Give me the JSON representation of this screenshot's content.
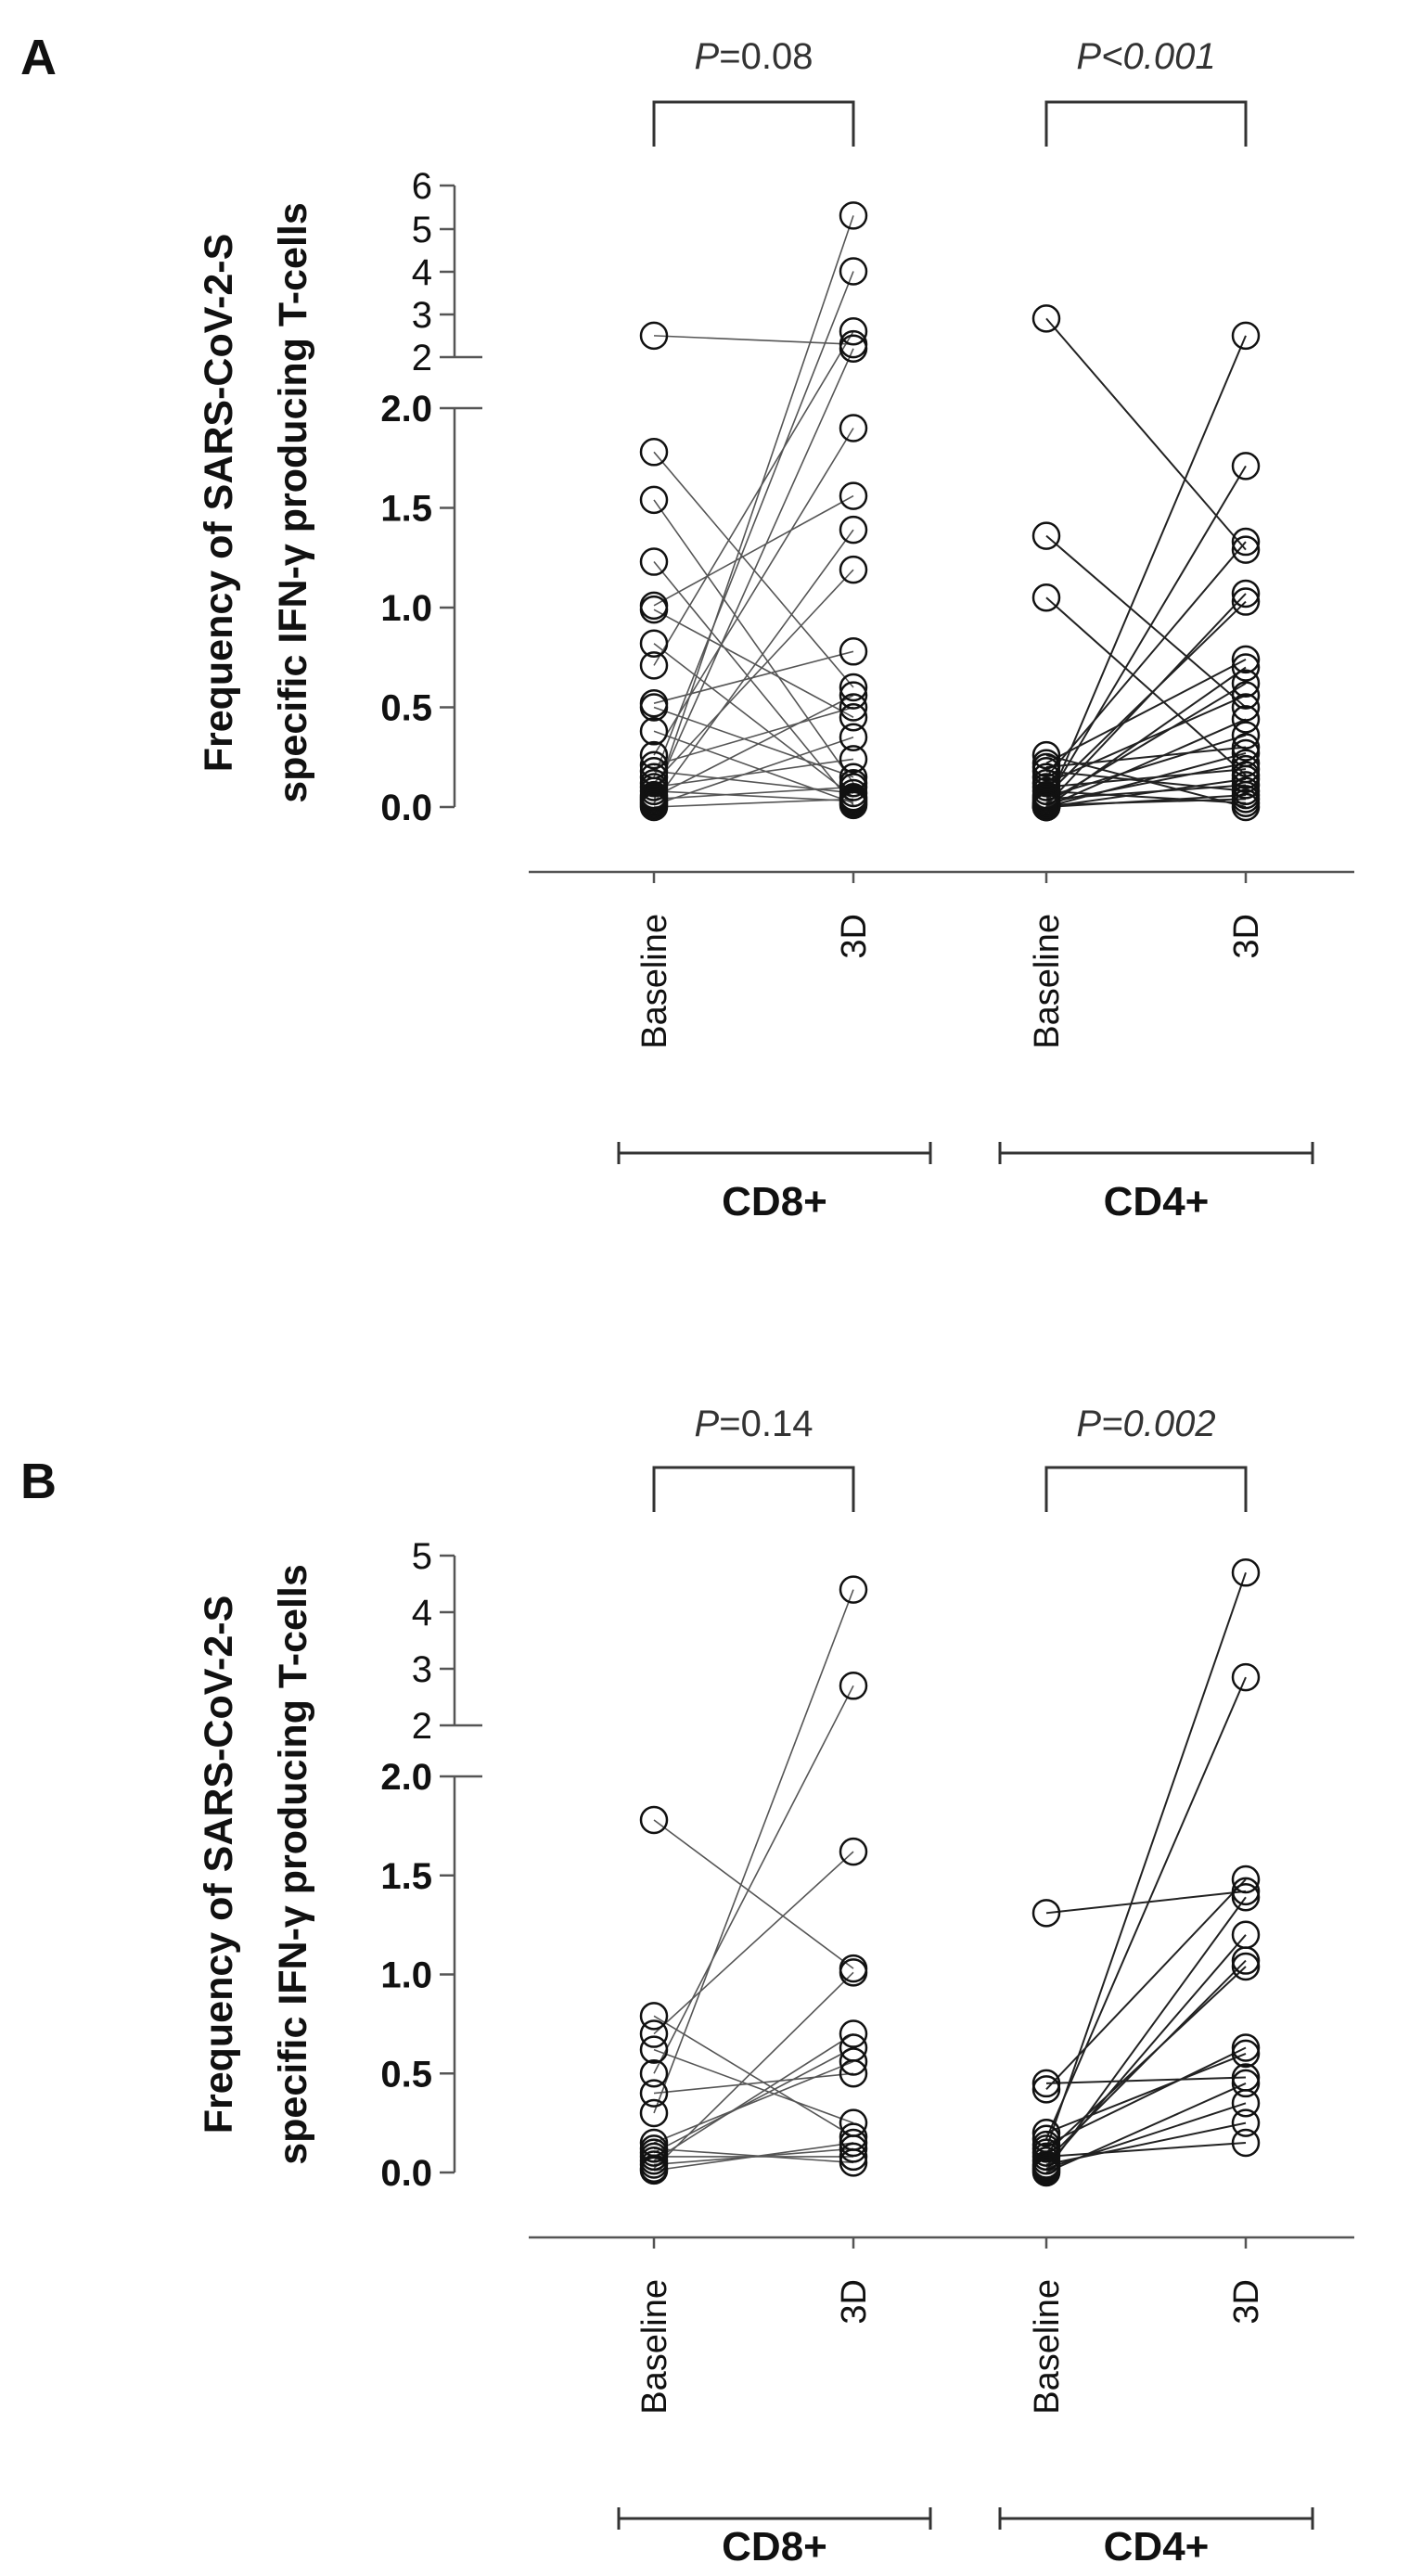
{
  "chart_data": [
    {
      "type": "scatter",
      "subtype": "paired-dot-plot",
      "panel": "A",
      "ylabel": [
        "Frequency of SARS-CoV-2-S",
        "specific IFN-γ producing T-cells"
      ],
      "categories": [
        "Baseline",
        "3D",
        "Baseline",
        "3D"
      ],
      "groups": [
        {
          "name": "CD8+",
          "pvalue": {
            "prefix": "P",
            "text": "=0.08",
            "italic_value": false
          },
          "series": [
            {
              "name": "Baseline",
              "values": [
                2.5,
                1.78,
                1.54,
                1.23,
                1.01,
                0.99,
                0.82,
                0.71,
                0.52,
                0.5,
                0.38,
                0.26,
                0.21,
                0.18,
                0.15,
                0.12,
                0.1,
                0.08,
                0.06,
                0.05,
                0.04,
                0.03,
                0.02,
                0.01,
                0.0
              ]
            },
            {
              "name": "3D",
              "values": [
                5.3,
                4.0,
                2.6,
                2.3,
                2.2,
                1.9,
                1.56,
                1.39,
                1.19,
                0.78,
                0.6,
                0.56,
                0.5,
                0.45,
                0.35,
                0.24,
                0.15,
                0.12,
                0.1,
                0.07,
                0.05,
                0.04,
                0.03,
                0.02,
                0.01
              ]
            }
          ]
        },
        {
          "name": "CD4+",
          "pvalue": {
            "prefix": "P",
            "text": "<0.001",
            "italic_value": true
          },
          "series": [
            {
              "name": "Baseline",
              "values": [
                2.9,
                1.36,
                1.05,
                0.26,
                0.22,
                0.2,
                0.18,
                0.15,
                0.12,
                0.1,
                0.08,
                0.06,
                0.05,
                0.04,
                0.03,
                0.02,
                0.02,
                0.01,
                0.01,
                0.0,
                0.0,
                0.0,
                0.0,
                0.0,
                0.0
              ]
            },
            {
              "name": "3D",
              "values": [
                2.5,
                1.71,
                1.33,
                1.29,
                1.07,
                1.03,
                0.74,
                0.7,
                0.62,
                0.56,
                0.5,
                0.44,
                0.36,
                0.3,
                0.27,
                0.22,
                0.19,
                0.16,
                0.14,
                0.11,
                0.08,
                0.06,
                0.04,
                0.02,
                0.0
              ]
            }
          ]
        }
      ],
      "yaxis": {
        "lower": {
          "range": [
            0,
            2.0
          ],
          "ticks": [
            "0.0",
            "0.5",
            "1.0",
            "1.5",
            "2.0"
          ]
        },
        "upper": {
          "range": [
            2,
            6
          ],
          "ticks": [
            "2",
            "3",
            "4",
            "5",
            "6"
          ]
        }
      }
    },
    {
      "type": "scatter",
      "subtype": "paired-dot-plot",
      "panel": "B",
      "ylabel": [
        "Frequency of SARS-CoV-2-S",
        "specific IFN-γ producing T-cells"
      ],
      "categories": [
        "Baseline",
        "3D",
        "Baseline",
        "3D"
      ],
      "groups": [
        {
          "name": "CD8+",
          "pvalue": {
            "prefix": "P",
            "text": "=0.14",
            "italic_value": false
          },
          "series": [
            {
              "name": "Baseline",
              "values": [
                1.78,
                0.79,
                0.7,
                0.62,
                0.5,
                0.4,
                0.3,
                0.15,
                0.12,
                0.1,
                0.08,
                0.06,
                0.04,
                0.02,
                0.01
              ]
            },
            {
              "name": "3D",
              "values": [
                4.4,
                2.7,
                1.62,
                1.03,
                1.01,
                0.7,
                0.63,
                0.56,
                0.5,
                0.25,
                0.18,
                0.15,
                0.12,
                0.08,
                0.05
              ]
            }
          ]
        },
        {
          "name": "CD4+",
          "pvalue": {
            "prefix": "P",
            "text": "=0.002",
            "italic_value": true
          },
          "series": [
            {
              "name": "Baseline",
              "values": [
                1.31,
                0.45,
                0.42,
                0.2,
                0.17,
                0.14,
                0.12,
                0.1,
                0.08,
                0.06,
                0.04,
                0.03,
                0.02,
                0.01,
                0.0
              ]
            },
            {
              "name": "3D",
              "values": [
                4.7,
                2.85,
                1.48,
                1.42,
                1.39,
                1.2,
                1.07,
                1.04,
                0.63,
                0.6,
                0.48,
                0.45,
                0.35,
                0.25,
                0.15
              ]
            }
          ]
        }
      ],
      "yaxis": {
        "lower": {
          "range": [
            0,
            2.0
          ],
          "ticks": [
            "0.0",
            "0.5",
            "1.0",
            "1.5",
            "2.0"
          ]
        },
        "upper": {
          "range": [
            2,
            5
          ],
          "ticks": [
            "2",
            "3",
            "4",
            "5"
          ]
        }
      }
    }
  ]
}
